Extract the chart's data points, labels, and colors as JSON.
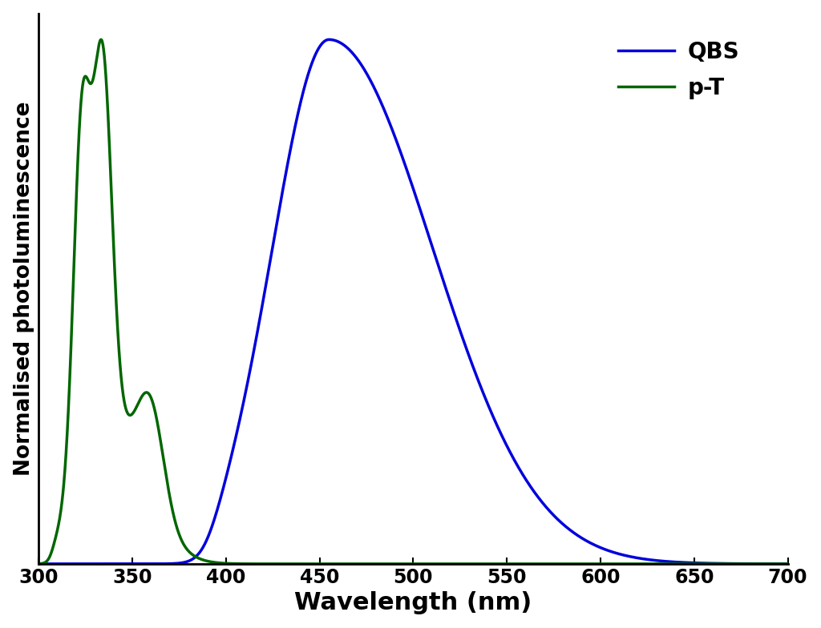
{
  "title": "",
  "xlabel": "Wavelength (nm)",
  "ylabel": "Normalised photoluminescence",
  "xlim": [
    300,
    700
  ],
  "ylim": [
    0,
    1.05
  ],
  "qbs_color": "#0000dd",
  "pt_color": "#006600",
  "line_width": 2.5,
  "legend_labels": [
    "QBS",
    "p-T"
  ],
  "legend_colors": [
    "#0000dd",
    "#006600"
  ],
  "xlabel_fontsize": 22,
  "ylabel_fontsize": 19,
  "tick_fontsize": 17,
  "legend_fontsize": 20,
  "background_color": "#ffffff",
  "xticks": [
    300,
    350,
    400,
    450,
    500,
    550,
    600,
    650,
    700
  ]
}
